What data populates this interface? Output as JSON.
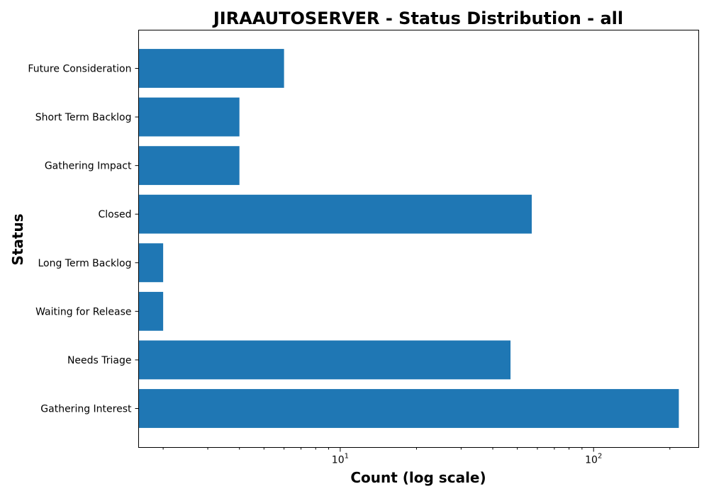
{
  "chart_data": {
    "type": "bar",
    "orientation": "horizontal",
    "title": "JIRAAUTOSERVER - Status Distribution - all",
    "xlabel": "Count (log scale)",
    "ylabel": "Status",
    "xscale": "log",
    "xlim": [
      1.6,
      260
    ],
    "xticks": [
      {
        "base": "10",
        "exp": "1",
        "value": 10
      },
      {
        "base": "10",
        "exp": "2",
        "value": 100
      }
    ],
    "categories": [
      "Gathering Interest",
      "Needs Triage",
      "Waiting for Release",
      "Long Term Backlog",
      "Closed",
      "Gathering Impact",
      "Short Term Backlog",
      "Future Consideration"
    ],
    "values": [
      217,
      47,
      2,
      2,
      57,
      4,
      4,
      6
    ],
    "bar_color": "#1f77b4",
    "grid": false,
    "legend": "none"
  }
}
